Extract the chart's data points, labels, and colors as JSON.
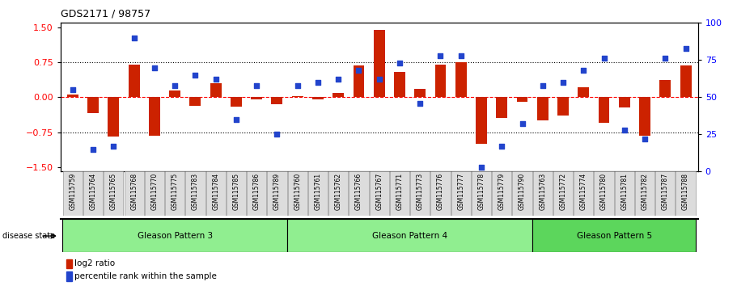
{
  "title": "GDS2171 / 98757",
  "samples": [
    "GSM115759",
    "GSM115764",
    "GSM115765",
    "GSM115768",
    "GSM115770",
    "GSM115775",
    "GSM115783",
    "GSM115784",
    "GSM115785",
    "GSM115786",
    "GSM115789",
    "GSM115760",
    "GSM115761",
    "GSM115762",
    "GSM115766",
    "GSM115767",
    "GSM115771",
    "GSM115773",
    "GSM115776",
    "GSM115777",
    "GSM115778",
    "GSM115779",
    "GSM115790",
    "GSM115763",
    "GSM115772",
    "GSM115774",
    "GSM115780",
    "GSM115781",
    "GSM115782",
    "GSM115787",
    "GSM115788"
  ],
  "log2_ratio": [
    0.05,
    -0.35,
    -0.85,
    0.7,
    -0.82,
    0.15,
    -0.18,
    0.3,
    -0.2,
    -0.05,
    -0.15,
    0.02,
    -0.05,
    0.1,
    0.68,
    1.45,
    0.55,
    0.18,
    0.7,
    0.75,
    -1.0,
    -0.45,
    -0.1,
    -0.5,
    -0.4,
    0.22,
    -0.55,
    -0.22,
    -0.82,
    0.38,
    0.68
  ],
  "percentile": [
    55,
    15,
    17,
    90,
    70,
    58,
    65,
    62,
    35,
    58,
    25,
    58,
    60,
    62,
    68,
    62,
    73,
    46,
    78,
    78,
    3,
    17,
    32,
    58,
    60,
    68,
    76,
    28,
    22,
    76,
    83
  ],
  "groups": [
    {
      "label": "Gleason Pattern 3",
      "start": 0,
      "end": 11,
      "color": "#90EE90"
    },
    {
      "label": "Gleason Pattern 4",
      "start": 11,
      "end": 23,
      "color": "#90EE90"
    },
    {
      "label": "Gleason Pattern 5",
      "start": 23,
      "end": 31,
      "color": "#5CD65C"
    }
  ],
  "bar_color": "#CC2200",
  "dot_color": "#2244CC",
  "ylim_left": [
    -1.6,
    1.6
  ],
  "ylim_right": [
    0,
    100
  ],
  "yticks_left": [
    -1.5,
    -0.75,
    0,
    0.75,
    1.5
  ],
  "yticks_right": [
    0,
    25,
    50,
    75,
    100
  ],
  "hlines_dotted": [
    -0.75,
    0.75
  ],
  "hline_zero": 0,
  "tick_label_bg": "#DCDCDC"
}
